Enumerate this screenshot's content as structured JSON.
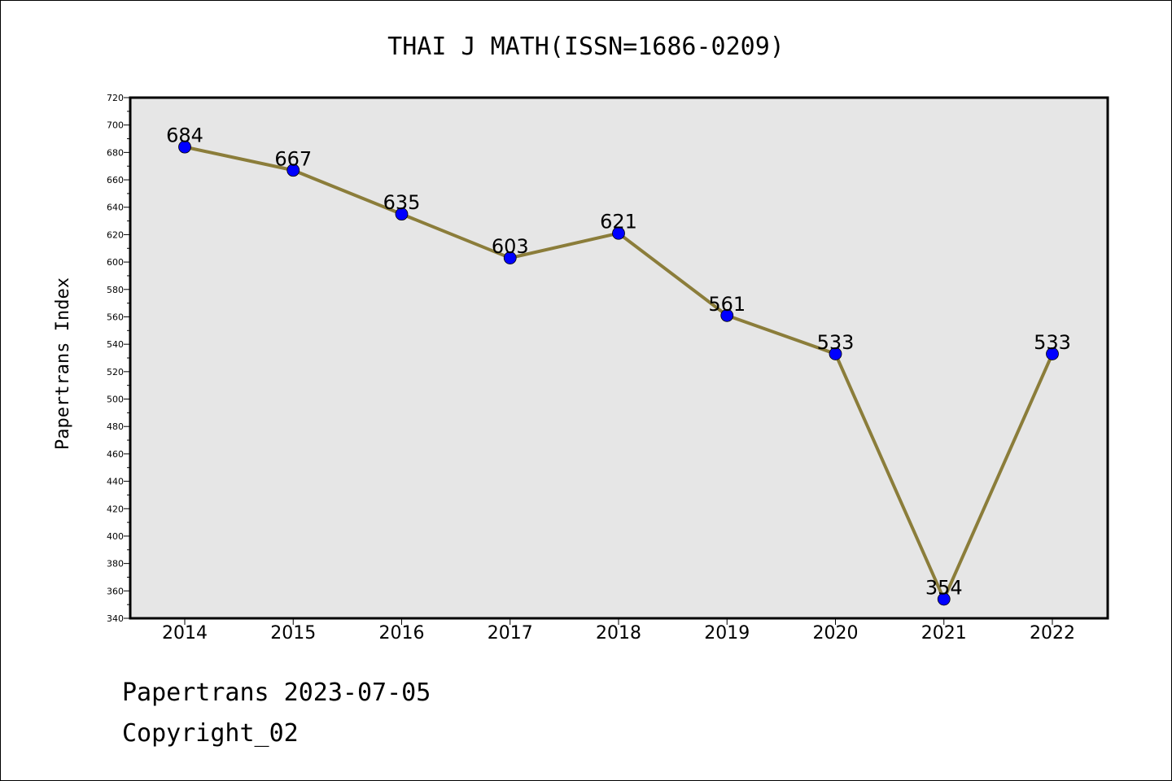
{
  "chart_data": {
    "type": "line",
    "title": "THAI J MATH(ISSN=1686-0209)",
    "xlabel": "",
    "ylabel": "Papertrans Index",
    "categories": [
      "2014",
      "2015",
      "2016",
      "2017",
      "2018",
      "2019",
      "2020",
      "2021",
      "2022"
    ],
    "series": [
      {
        "values": [
          684,
          667,
          635,
          603,
          621,
          561,
          533,
          354,
          533
        ]
      }
    ],
    "ylim": [
      340,
      720
    ],
    "yticks": [
      340,
      360,
      380,
      400,
      420,
      440,
      460,
      480,
      500,
      520,
      540,
      560,
      580,
      600,
      620,
      640,
      660,
      680,
      700,
      720
    ],
    "grid": false,
    "legend": "none",
    "colors": {
      "line": "#8B7D3A",
      "marker": "#0000FF",
      "plot_background": "#E6E6E6"
    }
  },
  "footer": {
    "line1": "Papertrans 2023-07-05",
    "line2": "Copyright_02"
  }
}
